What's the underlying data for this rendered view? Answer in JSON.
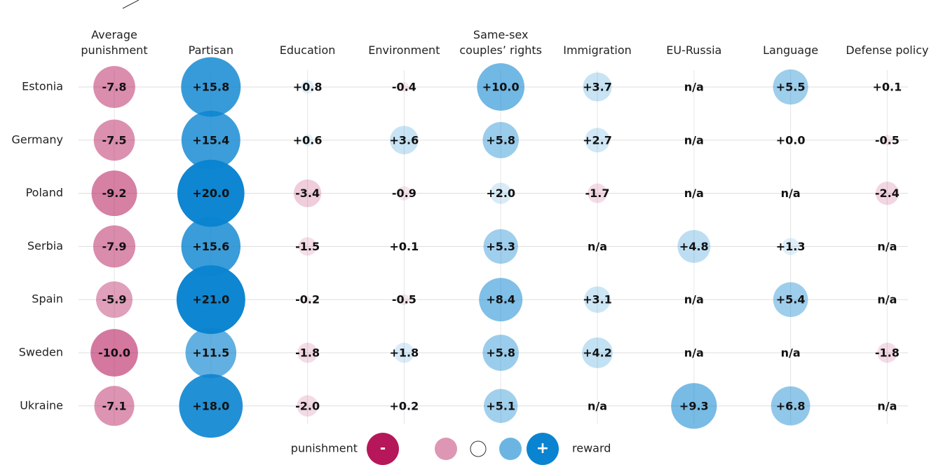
{
  "chart_data": {
    "type": "bubble",
    "rows": [
      "Estonia",
      "Germany",
      "Poland",
      "Serbia",
      "Spain",
      "Sweden",
      "Ukraine"
    ],
    "colors": {
      "negative": "#b5175a",
      "positive": "#0a84d0"
    },
    "series": [
      {
        "name": "Average punishment",
        "values": [
          -7.8,
          -7.5,
          -9.2,
          -7.9,
          -5.9,
          -10.0,
          -7.1
        ],
        "value_labels": [
          "-7.8",
          "-7.5",
          "-9.2",
          "-7.9",
          "-5.9",
          "-10.0",
          "-7.1"
        ]
      },
      {
        "name": "Partisan",
        "values": [
          15.8,
          15.4,
          20.0,
          15.6,
          21.0,
          11.5,
          18.0
        ],
        "value_labels": [
          "+15.8",
          "+15.4",
          "+20.0",
          "+15.6",
          "+21.0",
          "+11.5",
          "+18.0"
        ]
      },
      {
        "name": "Education",
        "values": [
          0.8,
          0.6,
          -3.4,
          -1.5,
          -0.2,
          -1.8,
          -2.0
        ],
        "value_labels": [
          "+0.8",
          "+0.6",
          "-3.4",
          "-1.5",
          "-0.2",
          "-1.8",
          "-2.0"
        ]
      },
      {
        "name": "Environment",
        "values": [
          -0.4,
          3.6,
          -0.9,
          0.1,
          -0.5,
          1.8,
          0.2
        ],
        "value_labels": [
          "-0.4",
          "+3.6",
          "-0.9",
          "+0.1",
          "-0.5",
          "+1.8",
          "+0.2"
        ]
      },
      {
        "name": "Same-sex couples’ rights",
        "values": [
          10.0,
          5.8,
          2.0,
          5.3,
          8.4,
          5.8,
          5.1
        ],
        "value_labels": [
          "+10.0",
          "+5.8",
          "+2.0",
          "+5.3",
          "+8.4",
          "+5.8",
          "+5.1"
        ]
      },
      {
        "name": "Immigration",
        "values": [
          3.7,
          2.7,
          -1.7,
          null,
          3.1,
          4.2,
          null
        ],
        "value_labels": [
          "+3.7",
          "+2.7",
          "-1.7",
          "n/a",
          "+3.1",
          "+4.2",
          "n/a"
        ]
      },
      {
        "name": "EU-Russia",
        "values": [
          null,
          null,
          null,
          4.8,
          null,
          null,
          9.3
        ],
        "value_labels": [
          "n/a",
          "n/a",
          "n/a",
          "+4.8",
          "n/a",
          "n/a",
          "+9.3"
        ]
      },
      {
        "name": "Language",
        "values": [
          5.5,
          0.0,
          null,
          1.3,
          5.4,
          null,
          6.8
        ],
        "value_labels": [
          "+5.5",
          "+0.0",
          "n/a",
          "+1.3",
          "+5.4",
          "n/a",
          "+6.8"
        ]
      },
      {
        "name": "Defense policy",
        "values": [
          0.1,
          -0.5,
          -2.4,
          null,
          null,
          -1.8,
          null
        ],
        "value_labels": [
          "+0.1",
          "-0.5",
          "-2.4",
          "n/a",
          "n/a",
          "-1.8",
          "n/a"
        ]
      }
    ],
    "legend": {
      "left": "punishment",
      "minus": "-",
      "plus": "+",
      "right": "reward"
    }
  }
}
